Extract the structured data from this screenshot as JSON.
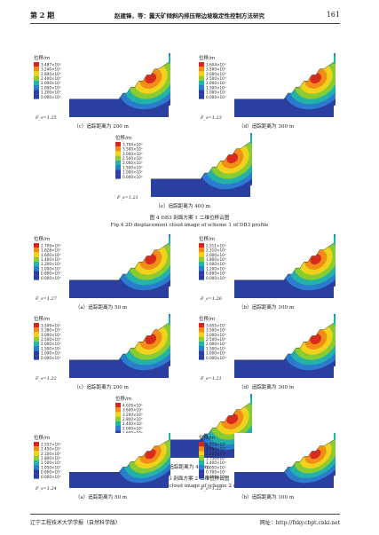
{
  "header": {
    "issue": "第 2 期",
    "authors_title": "赵建锋，等：露天矿倾斜内排压帮边坡稳定性控制方法研究",
    "page": "161"
  },
  "fig4": {
    "panels": [
      {
        "caption": "（c）追踪距离为 200  m",
        "fs": "F_s=1.25",
        "unit": "位移/m",
        "levels": [
          "3.487×10⁰",
          "3.240×10⁰",
          "2.800×10⁰",
          "2.400×10⁰",
          "2.000×10⁰",
          "1.600×10⁰",
          "1.200×10⁰",
          "0.000×10⁰"
        ]
      },
      {
        "caption": "（d）追踪距离为 300  m",
        "fs": "F_s=1.23",
        "unit": "位移/m",
        "levels": [
          "3.604×10⁰",
          "3.500×10⁰",
          "3.000×10⁰",
          "2.500×10⁰",
          "2.000×10⁰",
          "1.500×10⁰",
          "1.000×10⁰",
          "0.000×10⁰"
        ]
      },
      {
        "caption": "（e）追踪距离为 400  m",
        "fs": "F_s=1.21",
        "unit": "位移/m",
        "levels": [
          "3.704×10⁰",
          "3.500×10⁰",
          "3.000×10⁰",
          "2.500×10⁰",
          "2.000×10⁰",
          "1.500×10⁰",
          "1.000×10⁰",
          "0.000×10⁰"
        ]
      }
    ],
    "caption_cn": "图 4    DB3 剖面方案 1 二维位移云图",
    "caption_en": "Fig.4    2D displacement cloud image of scheme 1 of DB3 profile"
  },
  "fig5": {
    "panels": [
      {
        "caption": "（a）追踪距离为 50  m",
        "fs": "F_s=1.27",
        "unit": "位移/m",
        "levels": [
          "2.709×10⁰",
          "1.828×10⁰",
          "1.600×10⁰",
          "1.400×10⁰",
          "1.200×10⁰",
          "1.000×10⁰",
          "0.800×10⁰",
          "0.000×10⁰"
        ]
      },
      {
        "caption": "（b）追踪距离为 100  m",
        "fs": "F_s=1.26",
        "unit": "位移/m",
        "levels": [
          "2.511×10⁰",
          "2.310×10⁰",
          "2.000×10⁰",
          "1.800×10⁰",
          "1.600×10⁰",
          "1.200×10⁰",
          "0.800×10⁰",
          "0.000×10⁰"
        ]
      },
      {
        "caption": "（c）追踪距离为 200  m",
        "fs": "F_s=1.22",
        "unit": "位移/m",
        "levels": [
          "3.509×10⁰",
          "3.380×10⁰",
          "3.000×10⁰",
          "2.500×10⁰",
          "2.000×10⁰",
          "1.500×10⁰",
          "1.000×10⁰",
          "0.000×10⁰"
        ]
      },
      {
        "caption": "（d）追踪距离为 300  m",
        "fs": "F_s=1.21",
        "unit": "位移/m",
        "levels": [
          "3.655×10⁰",
          "3.500×10⁰",
          "3.000×10⁰",
          "2.500×10⁰",
          "2.000×10⁰",
          "1.500×10⁰",
          "1.000×10⁰",
          "0.000×10⁰"
        ]
      },
      {
        "caption": "（e）追踪距离为 400m",
        "fs": "F_s=1.19",
        "unit": "位移/m",
        "levels": [
          "4.026×10⁰",
          "3.600×10⁰",
          "3.200×10⁰",
          "2.800×10⁰",
          "2.400×10⁰",
          "2.000×10⁰",
          "1.600×10⁰",
          "0.000×10⁰"
        ]
      }
    ],
    "caption_cn": "图 5    DB3 剖面方案 2 二维位移云图",
    "caption_en": "Fig.5    2D displacement cloud image of scheme 2 of DB3 profile"
  },
  "fig6": {
    "panels": [
      {
        "caption": "（a）追踪距离为 50  m",
        "fs": "F_s=1.24",
        "unit": "位移/m",
        "levels": [
          "2.557×10⁰",
          "2.450×10⁰",
          "2.100×10⁰",
          "1.800×10⁰",
          "1.500×10⁰",
          "1.050×10⁰",
          "0.600×10⁰",
          "0.000×10⁰"
        ]
      },
      {
        "caption": "（b）追踪距离为 100  m",
        "fs": "F_s=1.22",
        "unit": "位移/m",
        "levels": [
          "2.818×10⁰",
          "2.450×10⁰",
          "2.100×10⁰",
          "1.750×10⁰",
          "1.400×10⁰",
          "1.050×10⁰",
          "0.700×10⁰",
          "0.000×10⁰"
        ]
      }
    ]
  },
  "footer": {
    "journal": "辽宁工程技术大学学报（自然科学版）",
    "url": "网址：http://fxky.cbpt.cnki.net"
  },
  "colors": {
    "band": [
      "#d7261e",
      "#f08a18",
      "#f6d11a",
      "#8fce2a",
      "#22b5a8",
      "#2b7fd1",
      "#2a3fa0"
    ],
    "bg": "#2a3fa0"
  }
}
